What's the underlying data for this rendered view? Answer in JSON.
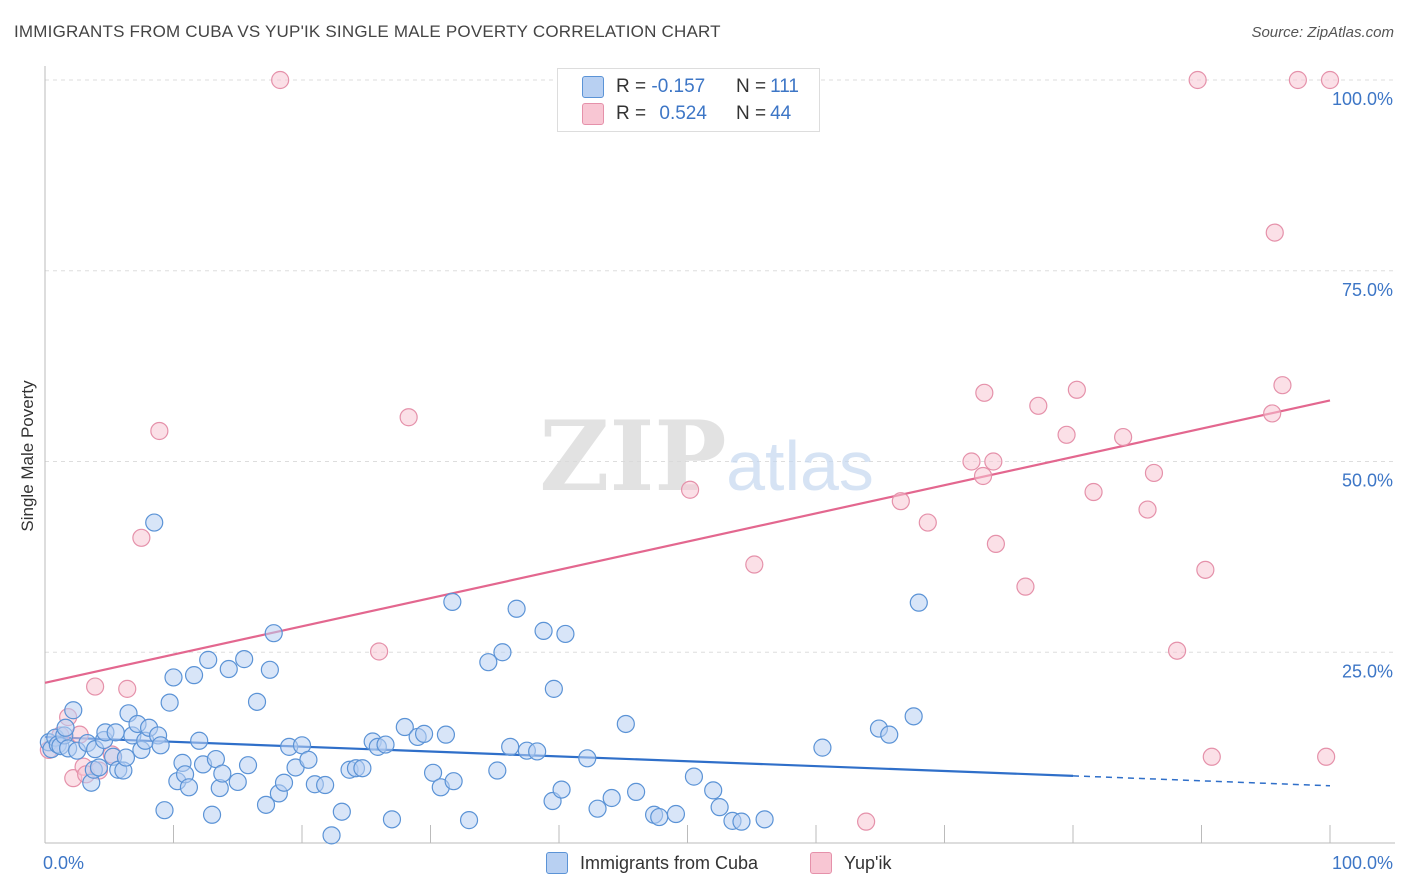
{
  "title": "IMMIGRANTS FROM CUBA VS YUP'IK SINGLE MALE POVERTY CORRELATION CHART",
  "source": "Source: ZipAtlas.com",
  "watermark": {
    "zip": "ZIP",
    "atlas": "atlas"
  },
  "legend": {
    "series1": {
      "r_label": "R = ",
      "r_value": "-0.157",
      "n_label": "N = ",
      "n_value": "111"
    },
    "series2": {
      "r_label": "R = ",
      "r_value": "0.524",
      "n_label": "N = ",
      "n_value": "44"
    }
  },
  "bottom_legend": [
    "Immigrants from Cuba",
    "Yup'ik"
  ],
  "colors": {
    "blue_fill": "#b8d0f2",
    "blue_stroke": "#5b93d6",
    "blue_line": "#2f6fc9",
    "pink_fill": "#f8c6d3",
    "pink_stroke": "#e591aa",
    "pink_line": "#e3678f",
    "tick_label": "#3d76c6",
    "grid": "#dddddd"
  },
  "chart_data": {
    "type": "scatter",
    "xlabel": "",
    "ylabel": "Single Male Poverty",
    "xlim": [
      0,
      100
    ],
    "ylim": [
      0,
      100
    ],
    "x_tick_labels": [
      "0.0%",
      "100.0%"
    ],
    "y_tick_labels": [
      "25.0%",
      "50.0%",
      "75.0%",
      "100.0%"
    ],
    "y_ticks": [
      25,
      50,
      75,
      100
    ],
    "grid": true,
    "series": [
      {
        "name": "Immigrants from Cuba",
        "color": "blue",
        "R": -0.157,
        "N": 111,
        "trendline": {
          "x": [
            0,
            80
          ],
          "y": [
            13.9,
            8.8
          ]
        },
        "trendline_dashed": {
          "x": [
            80,
            100
          ],
          "y": [
            8.8,
            7.5
          ]
        },
        "points": [
          [
            0.3,
            13.2
          ],
          [
            0.5,
            12.3
          ],
          [
            0.8,
            13.8
          ],
          [
            1.0,
            12.9
          ],
          [
            1.2,
            12.7
          ],
          [
            1.5,
            14.1
          ],
          [
            1.6,
            15.1
          ],
          [
            1.8,
            12.4
          ],
          [
            2.2,
            17.4
          ],
          [
            2.5,
            12.1
          ],
          [
            3.3,
            13.1
          ],
          [
            3.6,
            7.9
          ],
          [
            3.8,
            9.6
          ],
          [
            3.9,
            12.3
          ],
          [
            4.2,
            9.9
          ],
          [
            4.6,
            13.5
          ],
          [
            4.7,
            14.5
          ],
          [
            5.3,
            11.3
          ],
          [
            5.5,
            14.5
          ],
          [
            5.7,
            9.6
          ],
          [
            6.1,
            9.5
          ],
          [
            6.3,
            11.2
          ],
          [
            6.5,
            17.0
          ],
          [
            6.8,
            14.1
          ],
          [
            7.2,
            15.6
          ],
          [
            7.5,
            12.2
          ],
          [
            7.8,
            13.4
          ],
          [
            8.1,
            15.1
          ],
          [
            8.5,
            42.0
          ],
          [
            8.8,
            14.1
          ],
          [
            9.0,
            12.8
          ],
          [
            9.3,
            4.3
          ],
          [
            9.7,
            18.4
          ],
          [
            10.0,
            21.7
          ],
          [
            10.3,
            8.1
          ],
          [
            10.7,
            10.5
          ],
          [
            10.9,
            9.0
          ],
          [
            11.2,
            7.3
          ],
          [
            11.6,
            22.0
          ],
          [
            12.0,
            13.4
          ],
          [
            12.3,
            10.3
          ],
          [
            12.7,
            24.0
          ],
          [
            13.0,
            3.7
          ],
          [
            13.3,
            11.0
          ],
          [
            13.6,
            7.2
          ],
          [
            13.8,
            9.1
          ],
          [
            14.3,
            22.8
          ],
          [
            15.0,
            8.0
          ],
          [
            15.5,
            24.1
          ],
          [
            15.8,
            10.2
          ],
          [
            16.5,
            18.5
          ],
          [
            17.2,
            5.0
          ],
          [
            17.5,
            22.7
          ],
          [
            17.8,
            27.5
          ],
          [
            18.2,
            6.5
          ],
          [
            18.6,
            7.9
          ],
          [
            19.0,
            12.6
          ],
          [
            19.5,
            9.9
          ],
          [
            20.0,
            12.8
          ],
          [
            20.5,
            10.9
          ],
          [
            21.0,
            7.7
          ],
          [
            21.8,
            7.6
          ],
          [
            22.3,
            1.0
          ],
          [
            23.1,
            4.1
          ],
          [
            23.7,
            9.6
          ],
          [
            24.2,
            9.8
          ],
          [
            24.7,
            9.8
          ],
          [
            25.5,
            13.3
          ],
          [
            25.9,
            12.6
          ],
          [
            26.5,
            12.9
          ],
          [
            27.0,
            3.1
          ],
          [
            28.0,
            15.2
          ],
          [
            29.0,
            13.9
          ],
          [
            29.5,
            14.3
          ],
          [
            30.2,
            9.2
          ],
          [
            30.8,
            7.3
          ],
          [
            31.2,
            14.2
          ],
          [
            31.7,
            31.6
          ],
          [
            31.8,
            8.1
          ],
          [
            33.0,
            3.0
          ],
          [
            34.5,
            23.7
          ],
          [
            35.2,
            9.5
          ],
          [
            35.6,
            25.0
          ],
          [
            36.2,
            12.6
          ],
          [
            36.7,
            30.7
          ],
          [
            37.5,
            12.1
          ],
          [
            38.3,
            12.0
          ],
          [
            38.8,
            27.8
          ],
          [
            39.5,
            5.5
          ],
          [
            39.6,
            20.2
          ],
          [
            40.2,
            7.0
          ],
          [
            40.5,
            27.4
          ],
          [
            42.2,
            11.1
          ],
          [
            43.0,
            4.5
          ],
          [
            44.1,
            5.9
          ],
          [
            45.2,
            15.6
          ],
          [
            46.0,
            6.7
          ],
          [
            47.4,
            3.7
          ],
          [
            47.8,
            3.4
          ],
          [
            49.1,
            3.8
          ],
          [
            50.5,
            8.7
          ],
          [
            52.0,
            6.9
          ],
          [
            52.5,
            4.7
          ],
          [
            53.5,
            2.9
          ],
          [
            54.2,
            2.8
          ],
          [
            56.0,
            3.1
          ],
          [
            60.5,
            12.5
          ],
          [
            64.9,
            15.0
          ],
          [
            65.7,
            14.2
          ],
          [
            67.6,
            16.6
          ],
          [
            68.0,
            31.5
          ]
        ]
      },
      {
        "name": "Yup'ik",
        "color": "pink",
        "R": 0.524,
        "N": 44,
        "trendline": {
          "x": [
            0,
            100
          ],
          "y": [
            21.0,
            58.0
          ]
        },
        "points": [
          [
            0.3,
            12.2
          ],
          [
            1.2,
            14.1
          ],
          [
            1.8,
            16.5
          ],
          [
            2.2,
            8.5
          ],
          [
            2.7,
            14.2
          ],
          [
            3.0,
            10.0
          ],
          [
            3.2,
            9.0
          ],
          [
            3.9,
            20.5
          ],
          [
            4.2,
            9.5
          ],
          [
            5.2,
            11.6
          ],
          [
            6.4,
            20.2
          ],
          [
            7.5,
            40.0
          ],
          [
            8.9,
            54.0
          ],
          [
            18.3,
            100.0
          ],
          [
            26.0,
            25.1
          ],
          [
            28.3,
            55.8
          ],
          [
            50.2,
            46.3
          ],
          [
            55.2,
            36.5
          ],
          [
            66.6,
            44.8
          ],
          [
            68.7,
            42.0
          ],
          [
            72.1,
            50.0
          ],
          [
            73.0,
            48.1
          ],
          [
            73.1,
            59.0
          ],
          [
            73.8,
            50.0
          ],
          [
            74.0,
            39.2
          ],
          [
            76.3,
            33.6
          ],
          [
            77.3,
            57.3
          ],
          [
            79.5,
            53.5
          ],
          [
            80.3,
            59.4
          ],
          [
            81.6,
            46.0
          ],
          [
            83.9,
            53.2
          ],
          [
            85.8,
            43.7
          ],
          [
            86.3,
            48.5
          ],
          [
            88.1,
            25.2
          ],
          [
            89.7,
            100.0
          ],
          [
            90.3,
            35.8
          ],
          [
            90.8,
            11.3
          ],
          [
            95.5,
            56.3
          ],
          [
            95.7,
            80.0
          ],
          [
            96.3,
            60.0
          ],
          [
            97.5,
            100.0
          ],
          [
            99.7,
            11.3
          ],
          [
            100.0,
            100.0
          ],
          [
            63.9,
            2.8
          ]
        ]
      }
    ]
  }
}
